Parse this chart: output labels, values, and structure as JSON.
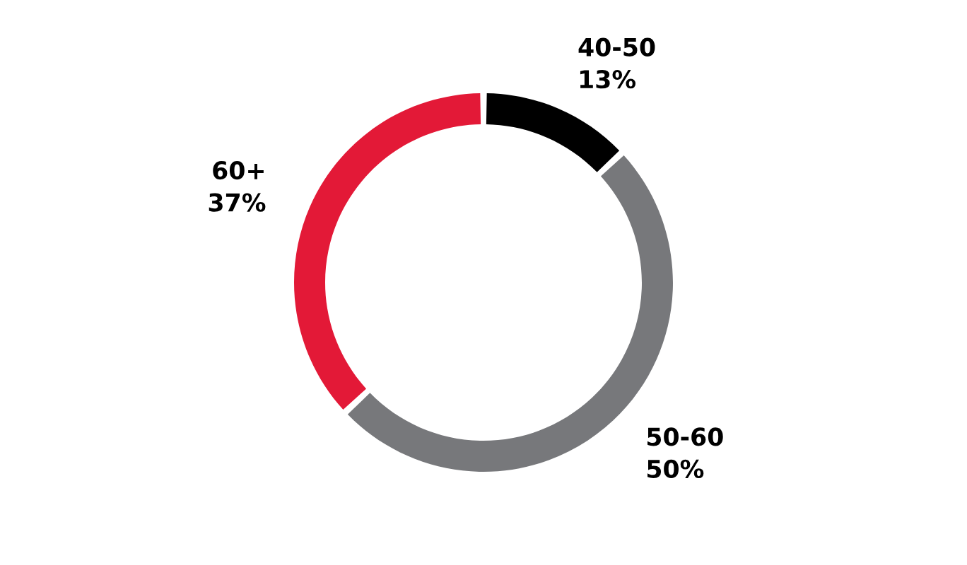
{
  "chart_data": {
    "type": "donut",
    "categories": [
      "40-50",
      "50-60",
      "60+"
    ],
    "values": [
      13,
      50,
      37
    ],
    "value_labels": [
      "13%",
      "50%",
      "37%"
    ],
    "colors": [
      "#000000",
      "#77787b",
      "#e31937"
    ],
    "legend": false
  }
}
